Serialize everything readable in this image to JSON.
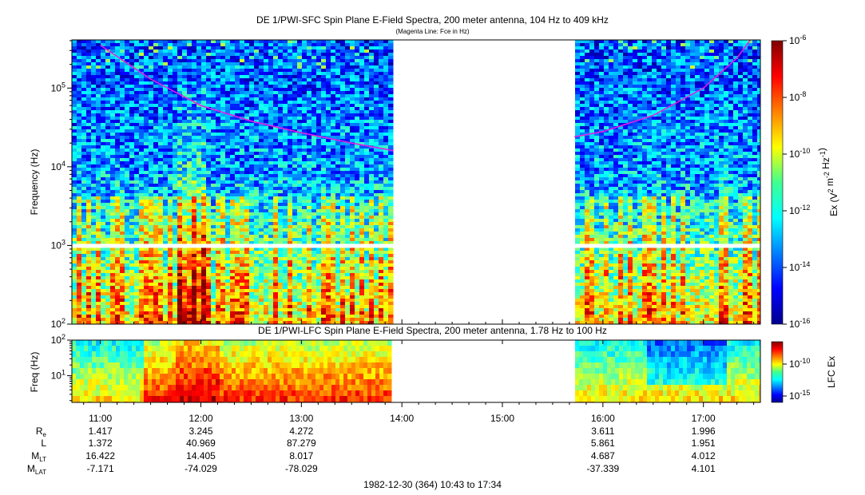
{
  "titles": {
    "sfc_title": "DE 1/PWI-SFC  Spin Plane E-Field Spectra, 200 meter antenna, 104 Hz to 409 kHz",
    "sfc_subtitle": "(Magenta Line: Fce in Hz)",
    "lfc_title": "DE 1/PWI-LFC  Spin Plane E-Field Spectra, 200 meter antenna, 1.78 Hz to 100 Hz"
  },
  "colors": {
    "fce_line": "#e020e0",
    "data_gap": "#ffffff"
  },
  "chart_data": [
    {
      "type": "heatmap",
      "name_hint": "SFC spectrogram",
      "ylabel": "Frequency (Hz)",
      "yscale": "log",
      "ylim": [
        100,
        409000
      ],
      "ytick_labels": [
        "10^2",
        "10^3",
        "10^4",
        "10^5"
      ],
      "ytick_values": [
        100,
        1000,
        10000,
        100000
      ],
      "x_time_range": [
        "10:43",
        "17:34"
      ],
      "data_gap": [
        "13:55",
        "15:43"
      ],
      "colorbar": {
        "label": "Ex (V^2 m^-2 Hz^-1)",
        "scale": "log",
        "range": [
          1e-16,
          1e-06
        ],
        "tick_labels": [
          "10^-6",
          "10^-8",
          "10^-10",
          "10^-12",
          "10^-14",
          "10^-16"
        ],
        "tick_values": [
          1e-06,
          1e-08,
          1e-10,
          1e-12,
          1e-14,
          1e-16
        ]
      },
      "fce_line": {
        "times": [
          "11:00",
          "11:30",
          "12:00",
          "12:30",
          "13:00",
          "13:30",
          "13:55",
          "15:43",
          "16:00",
          "16:30",
          "17:00",
          "17:20",
          "17:28"
        ],
        "values_hz": [
          350000,
          130000,
          60000,
          38000,
          27000,
          20000,
          16000,
          24000,
          28000,
          45000,
          100000,
          240000,
          409000
        ]
      }
    },
    {
      "type": "heatmap",
      "name_hint": "LFC spectrogram",
      "ylabel": "Freq (Hz)",
      "yscale": "log",
      "ylim": [
        1.78,
        100
      ],
      "ytick_labels": [
        "10^1",
        "10^2"
      ],
      "ytick_values": [
        10,
        100
      ],
      "data_gap": [
        "13:55",
        "15:43"
      ],
      "colorbar": {
        "label": "LFC Ex",
        "scale": "log",
        "tick_labels": [
          "10^-10",
          "10^-15"
        ],
        "tick_values": [
          1e-10,
          1e-15
        ]
      }
    }
  ],
  "time_axis": {
    "ticks": [
      "11:00",
      "12:00",
      "13:00",
      "14:00",
      "15:00",
      "16:00",
      "17:00"
    ]
  },
  "ephemeris": {
    "labels": {
      "re": [
        "R",
        "e"
      ],
      "l": [
        "L",
        ""
      ],
      "mlt": [
        "M",
        "LT"
      ],
      "mlat": [
        "M",
        "LAT"
      ]
    },
    "columns": [
      {
        "time": "11:00",
        "re": "1.417",
        "l": "1.372",
        "mlt": "16.422",
        "mlat": "-7.171"
      },
      {
        "time": "12:00",
        "re": "3.245",
        "l": "40.969",
        "mlt": "14.405",
        "mlat": "-74.029"
      },
      {
        "time": "13:00",
        "re": "4.272",
        "l": "87.279",
        "mlt": "8.017",
        "mlat": "-78.029"
      },
      {
        "time": "16:00",
        "re": "3.611",
        "l": "5.861",
        "mlt": "4.687",
        "mlat": "-37.339"
      },
      {
        "time": "17:00",
        "re": "1.996",
        "l": "1.951",
        "mlt": "4.012",
        "mlat": "4.101"
      }
    ]
  },
  "footer": "1982-12-30 (364) 10:43 to 17:34"
}
